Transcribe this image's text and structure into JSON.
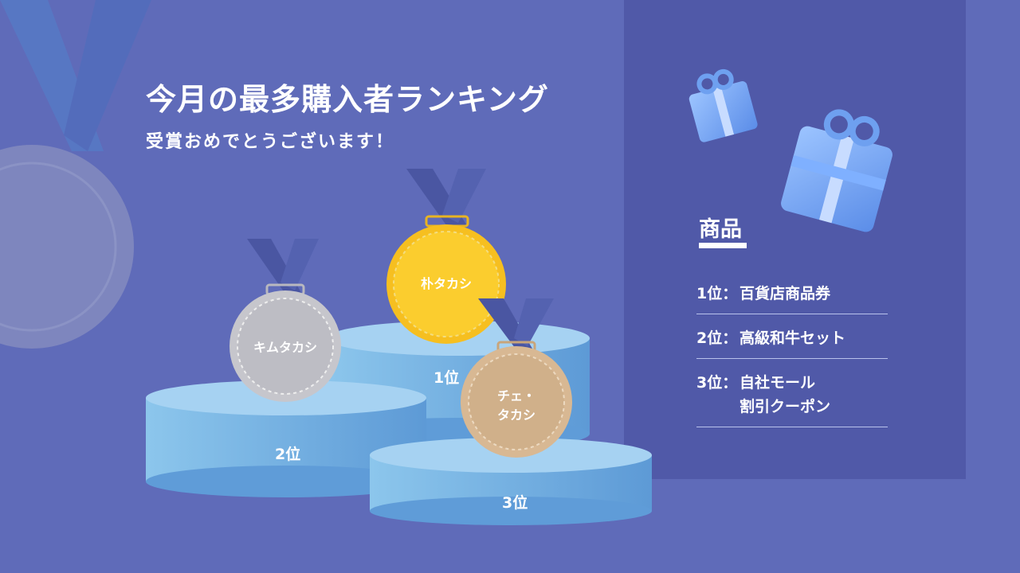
{
  "slide": {
    "title": "今月の最多購入者ランキング",
    "subtitle": "受賞おめでとうございます！"
  },
  "podium": {
    "first": {
      "rank": "1位",
      "name": "朴タカシ",
      "medal_color": "#f8c62a"
    },
    "second": {
      "rank": "2位",
      "name": "キムタカシ",
      "medal_color": "#c6c6cc"
    },
    "third": {
      "rank": "3位",
      "name_line1": "チェ・",
      "name_line2": "タカシ",
      "medal_color": "#d8b893"
    }
  },
  "prizes": {
    "heading": "商品",
    "items": [
      {
        "rank": "1位：",
        "name": "百貨店商品券"
      },
      {
        "rank": "2位：",
        "name": "高級和牛セット"
      },
      {
        "rank": "3位：",
        "name_line1": "自社モール",
        "name_line2": "割引クーポン"
      }
    ]
  },
  "colors": {
    "background": "#5f6bb9",
    "panel": "#5059a8",
    "podium": "#8cc2ea",
    "ribbon": "#4a56a2"
  },
  "icons": [
    "gift-box-icon",
    "medal-icon"
  ]
}
